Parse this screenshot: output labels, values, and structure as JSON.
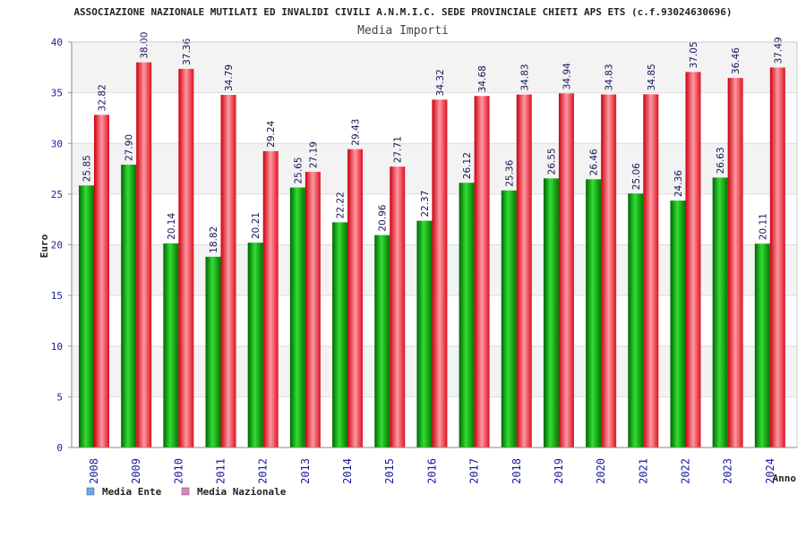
{
  "chart_data": {
    "type": "bar",
    "title": "ASSOCIAZIONE NAZIONALE MUTILATI ED INVALIDI CIVILI A.N.M.I.C. SEDE PROVINCIALE CHIETI APS ETS (c.f.93024630696)",
    "subtitle": "Media Importi",
    "xlabel": "Anno",
    "ylabel": "Euro",
    "ylim": [
      0,
      40
    ],
    "yticks": [
      "0",
      "5",
      "10",
      "15",
      "20",
      "25",
      "30",
      "35",
      "40"
    ],
    "grid": true,
    "legend_position": "bottom-left",
    "categories": [
      "2008",
      "2009",
      "2010",
      "2011",
      "2012",
      "2013",
      "2014",
      "2015",
      "2016",
      "2017",
      "2018",
      "2019",
      "2020",
      "2021",
      "2022",
      "2023",
      "2024"
    ],
    "series": [
      {
        "name": "Media Ente",
        "color": "#22aa22",
        "legend_color": "#66aaee",
        "values": [
          25.85,
          27.9,
          20.14,
          18.82,
          20.21,
          25.65,
          22.22,
          20.96,
          22.37,
          26.12,
          25.36,
          26.55,
          26.46,
          25.06,
          24.36,
          26.63,
          20.11
        ],
        "labels": [
          "25.85",
          "27.90",
          "20.14",
          "18.82",
          "20.21",
          "25.65",
          "22.22",
          "20.96",
          "22.37",
          "26.12",
          "25.36",
          "26.55",
          "26.46",
          "25.06",
          "24.36",
          "26.63",
          "20.11"
        ]
      },
      {
        "name": "Media Nazionale",
        "color": "#ee2233",
        "legend_color": "#dd88bb",
        "values": [
          32.82,
          38.0,
          37.36,
          34.79,
          29.24,
          27.19,
          29.43,
          27.71,
          34.32,
          34.68,
          34.83,
          34.94,
          34.83,
          34.85,
          37.05,
          36.46,
          37.49
        ],
        "labels": [
          "32.82",
          "38.00",
          "37.36",
          "34.79",
          "29.24",
          "27.19",
          "29.43",
          "27.71",
          "34.32",
          "34.68",
          "34.83",
          "34.94",
          "34.83",
          "34.85",
          "37.05",
          "36.46",
          "37.49"
        ]
      }
    ]
  }
}
